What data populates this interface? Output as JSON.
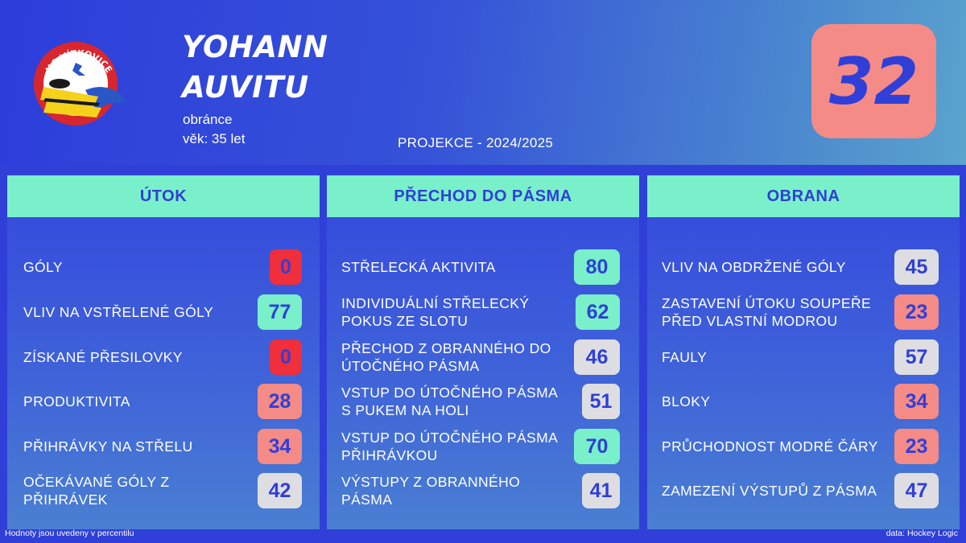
{
  "colors": {
    "background": "#2f3fd8",
    "header_accent": "#79f0c9",
    "number_badge": "#f48b87",
    "very_low": "#ef2f3b",
    "low": "#f48b87",
    "mid": "#dedee2",
    "high": "#79f0c9",
    "value_text": "#2f3fd8"
  },
  "team": {
    "logo_text": "HC VÍTKOVICE",
    "logo_icon": "hc-vitkovice-logo-icon"
  },
  "player": {
    "name_line1": "YOHANN",
    "name_line2": "AUVITU",
    "position": "obránce",
    "age": "věk: 35 let",
    "number": "32"
  },
  "projection": "PROJEKCE - 2024/2025",
  "panels": [
    {
      "title": "ÚTOK",
      "rows": [
        {
          "label": "GÓLY",
          "value": "0",
          "level": "very_low"
        },
        {
          "label": "VLIV NA VSTŘELENÉ GÓLY",
          "value": "77",
          "level": "high"
        },
        {
          "label": "ZÍSKANÉ PŘESILOVKY",
          "value": "0",
          "level": "very_low"
        },
        {
          "label": "PRODUKTIVITA",
          "value": "28",
          "level": "low"
        },
        {
          "label": "PŘIHRÁVKY NA STŘELU",
          "value": "34",
          "level": "low"
        },
        {
          "label": "OČEKÁVANÉ GÓLY Z PŘIHRÁVEK",
          "value": "42",
          "level": "mid"
        }
      ]
    },
    {
      "title": "PŘECHOD DO PÁSMA",
      "rows": [
        {
          "label": "STŘELECKÁ AKTIVITA",
          "value": "80",
          "level": "high"
        },
        {
          "label": "INDIVIDUÁLNÍ STŘELECKÝ POKUS ZE SLOTU",
          "value": "62",
          "level": "high"
        },
        {
          "label": "PŘECHOD Z OBRANNÉHO DO ÚTOČNÉHO PÁSMA",
          "value": "46",
          "level": "mid"
        },
        {
          "label": "VSTUP DO ÚTOČNÉHO PÁSMA S PUKEM NA HOLI",
          "value": "51",
          "level": "mid"
        },
        {
          "label": "VSTUP DO ÚTOČNÉHO PÁSMA PŘIHRÁVKOU",
          "value": "70",
          "level": "high"
        },
        {
          "label": "VÝSTUPY Z OBRANNÉHO PÁSMA",
          "value": "41",
          "level": "mid"
        }
      ]
    },
    {
      "title": "OBRANA",
      "rows": [
        {
          "label": "VLIV NA OBDRŽENÉ GÓLY",
          "value": "45",
          "level": "mid"
        },
        {
          "label": "ZASTAVENÍ ÚTOKU SOUPEŘE PŘED VLASTNÍ MODROU",
          "value": "23",
          "level": "low"
        },
        {
          "label": "FAULY",
          "value": "57",
          "level": "mid"
        },
        {
          "label": "BLOKY",
          "value": "34",
          "level": "low"
        },
        {
          "label": "PRŮCHODNOST MODRÉ ČÁRY",
          "value": "23",
          "level": "low"
        },
        {
          "label": "ZAMEZENÍ VÝSTUPŮ Z PÁSMA",
          "value": "47",
          "level": "mid"
        }
      ]
    }
  ],
  "footer": {
    "note": "Hodnoty jsou uvedeny v percentilu",
    "source": "data: Hockey Logic"
  }
}
